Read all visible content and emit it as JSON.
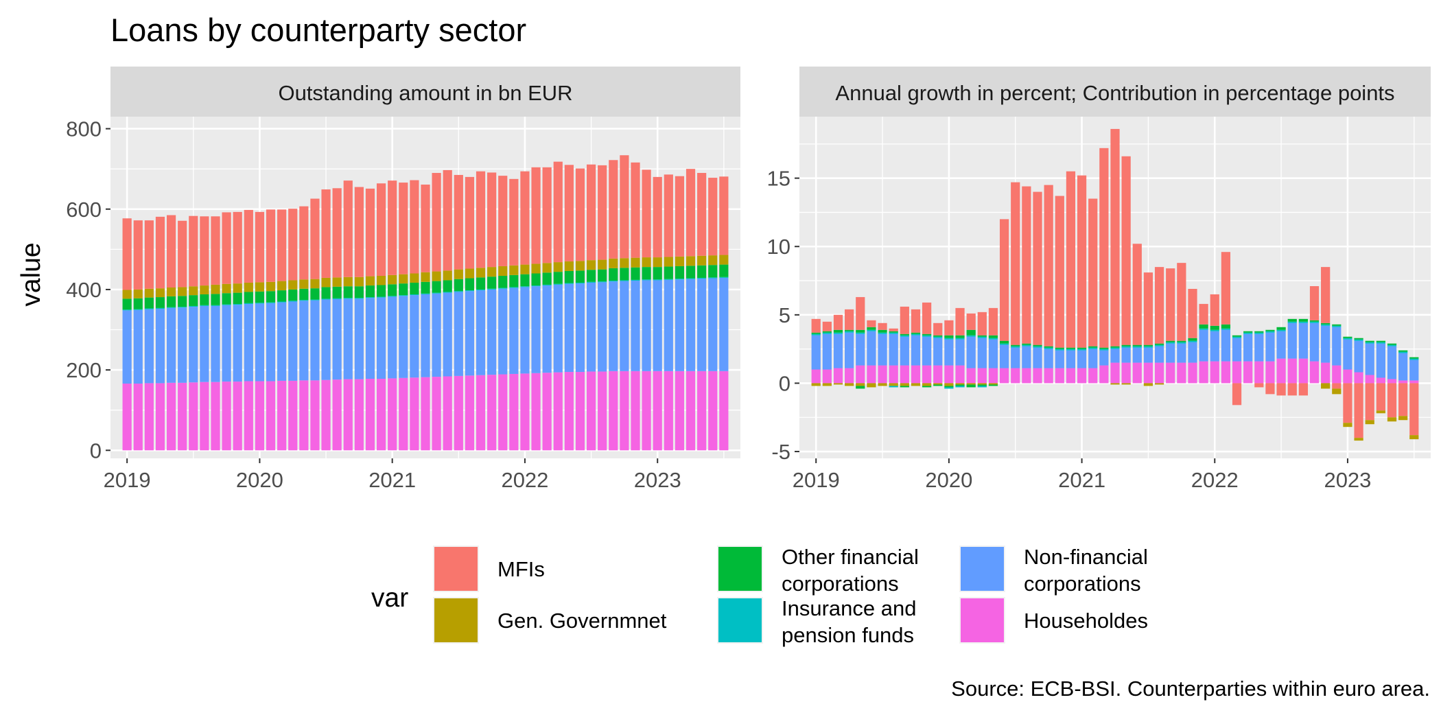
{
  "chart_data": {
    "type": "bar",
    "stacked": true,
    "title": "Loans by counterparty sector",
    "ylabel": "value",
    "caption": "Source: ECB-BSI. Counterparties within euro area.",
    "legend": {
      "title": "var",
      "position": "bottom"
    },
    "series": [
      {
        "name": "MFIs",
        "color": "#F8766D"
      },
      {
        "name": "Gen. Governmnet",
        "color": "#B79F00"
      },
      {
        "name": "Other financial corporations",
        "label_lines": [
          "Other financial",
          "corporations"
        ],
        "color": "#00BA38"
      },
      {
        "name": "Insurance and pension funds",
        "label_lines": [
          "Insurance and",
          "pension funds"
        ],
        "color": "#00BFC4"
      },
      {
        "name": "Non-financial corporations",
        "label_lines": [
          "Non-financial",
          "corporations"
        ],
        "color": "#619CFF"
      },
      {
        "name": "Householdes",
        "color": "#F564E3"
      }
    ],
    "x_start": "2019-01",
    "x_ticks": [
      "2019",
      "2020",
      "2021",
      "2022",
      "2023"
    ],
    "grid": true,
    "panels": [
      {
        "strip": "Outstanding amount in bn EUR",
        "ylim": [
          -20,
          830
        ],
        "y_ticks": [
          0,
          200,
          400,
          600,
          800
        ],
        "values": {
          "Householdes": [
            166,
            166,
            167,
            167,
            168,
            168,
            169,
            170,
            170,
            171,
            171,
            172,
            172,
            172,
            173,
            173,
            174,
            174,
            175,
            176,
            177,
            177,
            178,
            178,
            179,
            180,
            181,
            182,
            183,
            184,
            185,
            186,
            187,
            188,
            189,
            190,
            191,
            192,
            193,
            194,
            195,
            195,
            196,
            196,
            197,
            197,
            197,
            197,
            197,
            197,
            197,
            197,
            197,
            197,
            197
          ],
          "Non-financial corporations": [
            182,
            183,
            184,
            185,
            186,
            187,
            188,
            189,
            189,
            190,
            191,
            192,
            193,
            194,
            195,
            197,
            198,
            199,
            200,
            200,
            200,
            200,
            201,
            202,
            203,
            204,
            205,
            206,
            207,
            208,
            209,
            210,
            211,
            212,
            213,
            214,
            215,
            216,
            217,
            218,
            219,
            220,
            221,
            222,
            223,
            224,
            225,
            226,
            226,
            227,
            228,
            229,
            230,
            231,
            232
          ],
          "Insurance and pension funds": [
            2,
            2,
            2,
            2,
            2,
            2,
            2,
            2,
            2,
            2,
            2,
            2,
            2,
            2,
            2,
            2,
            2,
            2,
            2,
            2,
            2,
            2,
            2,
            2,
            2,
            2,
            2,
            2,
            2,
            2,
            2,
            2,
            2,
            2,
            2,
            2,
            2,
            2,
            2,
            2,
            2,
            2,
            2,
            2,
            2,
            2,
            2,
            2,
            2,
            2,
            2,
            2,
            2,
            2,
            2
          ],
          "Other financial corporations": [
            27,
            27,
            27,
            27,
            27,
            27,
            27,
            27,
            28,
            28,
            28,
            28,
            28,
            28,
            28,
            28,
            28,
            28,
            29,
            29,
            29,
            29,
            29,
            29,
            29,
            29,
            29,
            29,
            29,
            29,
            30,
            30,
            30,
            30,
            30,
            30,
            30,
            30,
            30,
            30,
            30,
            30,
            30,
            30,
            31,
            31,
            31,
            31,
            31,
            31,
            31,
            31,
            31,
            31,
            31
          ],
          "Gen. Governmnet": [
            22,
            22,
            22,
            22,
            22,
            22,
            22,
            22,
            23,
            23,
            23,
            23,
            23,
            23,
            23,
            23,
            23,
            23,
            23,
            23,
            23,
            23,
            23,
            23,
            23,
            23,
            23,
            24,
            24,
            24,
            24,
            24,
            24,
            24,
            24,
            24,
            24,
            24,
            24,
            24,
            24,
            24,
            24,
            24,
            24,
            24,
            24,
            24,
            24,
            24,
            24,
            24,
            24,
            24,
            24
          ],
          "MFIs": [
            178,
            172,
            170,
            178,
            180,
            165,
            175,
            172,
            170,
            178,
            178,
            181,
            175,
            180,
            178,
            178,
            182,
            200,
            220,
            222,
            240,
            224,
            218,
            230,
            235,
            228,
            232,
            218,
            245,
            250,
            235,
            228,
            240,
            235,
            225,
            215,
            232,
            240,
            238,
            250,
            240,
            230,
            238,
            235,
            245,
            256,
            237,
            218,
            200,
            205,
            200,
            217,
            206,
            193,
            195
          ]
        }
      },
      {
        "strip": "Annual growth in percent; Contribution in percentage points",
        "ylim": [
          -5.5,
          19.5
        ],
        "y_ticks": [
          -5,
          0,
          5,
          10,
          15
        ],
        "values": {
          "Householdes": [
            1.0,
            1.0,
            1.1,
            1.1,
            1.3,
            1.3,
            1.3,
            1.3,
            1.3,
            1.3,
            1.3,
            1.3,
            1.3,
            1.3,
            1.1,
            1.1,
            1.1,
            1.1,
            1.1,
            1.1,
            1.1,
            1.1,
            1.1,
            1.1,
            1.1,
            1.1,
            1.3,
            1.5,
            1.5,
            1.5,
            1.5,
            1.5,
            1.5,
            1.5,
            1.5,
            1.6,
            1.6,
            1.6,
            1.6,
            1.6,
            1.6,
            1.6,
            1.8,
            1.8,
            1.8,
            1.6,
            1.5,
            1.3,
            1.0,
            0.8,
            0.6,
            0.4,
            0.3,
            0.2,
            0.2
          ],
          "Non-financial corporations": [
            2.5,
            2.6,
            2.5,
            2.6,
            2.3,
            2.5,
            2.3,
            2.3,
            2.1,
            2.2,
            2.1,
            2.0,
            1.9,
            1.9,
            2.3,
            2.2,
            2.1,
            1.7,
            1.5,
            1.6,
            1.5,
            1.4,
            1.3,
            1.3,
            1.3,
            1.4,
            1.1,
            1.0,
            1.1,
            1.1,
            1.1,
            1.2,
            1.4,
            1.4,
            1.5,
            2.3,
            2.2,
            2.3,
            1.7,
            2.0,
            2.0,
            2.1,
            2.0,
            2.6,
            2.6,
            2.8,
            2.7,
            2.8,
            2.2,
            2.3,
            2.3,
            2.5,
            2.4,
            2.0,
            1.5
          ],
          "Insurance and pension funds": [
            0.1,
            0.1,
            0.1,
            0.1,
            0.1,
            0.1,
            0.1,
            0.1,
            0.1,
            0.1,
            0.1,
            0.1,
            0.1,
            0.1,
            0.1,
            0.1,
            0.1,
            0.1,
            0.1,
            0.1,
            0.1,
            0.1,
            0.1,
            0.1,
            0.1,
            0.1,
            0.1,
            0.1,
            0.1,
            0.1,
            0.1,
            0.1,
            0.1,
            0.1,
            0.1,
            0.1,
            0.1,
            0.1,
            0.1,
            0.1,
            0.1,
            0.1,
            0.1,
            0.1,
            0.1,
            0.1,
            0.1,
            0.1,
            0.1,
            0.1,
            0.1,
            0.1,
            0.1,
            0.1,
            0.1
          ],
          "Other financial corporations": [
            0.1,
            0.1,
            0.2,
            0.1,
            0.2,
            0.2,
            0.2,
            0.1,
            0.1,
            0.1,
            0.1,
            0.1,
            0.2,
            0.2,
            0.4,
            0.1,
            0.2,
            0.2,
            0.1,
            0.1,
            0.1,
            0.1,
            0.1,
            0.1,
            0.1,
            0.1,
            0.1,
            0.1,
            0.1,
            0.1,
            0.1,
            0.1,
            0.1,
            0.1,
            0.2,
            0.3,
            0.3,
            0.3,
            0.1,
            0.1,
            0.1,
            0.1,
            0.2,
            0.2,
            0.2,
            0.1,
            0.1,
            0.1,
            0.1,
            0.1,
            0.1,
            0.1,
            0.1,
            0.1,
            0.1
          ],
          "Gen. Governmnet": [
            0,
            0,
            0,
            0,
            0,
            0,
            0,
            0,
            0,
            0,
            0,
            0,
            0,
            0,
            0,
            0,
            0,
            0,
            0,
            0,
            0,
            0,
            0,
            0,
            0,
            0,
            0,
            0,
            0,
            0,
            0,
            0,
            0,
            0,
            0,
            0,
            0,
            0,
            0,
            0,
            0,
            0,
            0,
            0,
            0,
            0,
            0,
            0,
            0,
            0,
            0,
            0,
            0,
            0,
            0
          ],
          "MFIs": [
            1.0,
            0.7,
            1.1,
            1.5,
            2.4,
            0.5,
            0.5,
            0.2,
            2.0,
            1.7,
            2.3,
            0.9,
            1.1,
            2.0,
            1.2,
            1.7,
            2.0,
            8.9,
            11.9,
            11.5,
            11.2,
            11.8,
            11.1,
            12.9,
            12.6,
            10.8,
            14.6,
            15.9,
            13.8,
            7.4,
            5.3,
            5.6,
            5.3,
            5.7,
            3.6,
            1.5,
            2.3,
            5.3,
            -1.6,
            0,
            -0.3,
            -0.8,
            -0.9,
            -0.9,
            -0.9,
            2.5,
            4.1,
            -0.4,
            -2.9,
            -4.0,
            -2.7,
            -2.0,
            -2.5,
            -2.4,
            -3.8
          ],
          "neg_Gen. Governmnet": [
            -0.2,
            -0.2,
            -0.1,
            -0.2,
            -0.2,
            -0.3,
            -0.2,
            -0.2,
            -0.2,
            -0.2,
            -0.2,
            -0.1,
            -0.2,
            -0.1,
            -0.1,
            -0.1,
            -0.1,
            0,
            0,
            0,
            0,
            0,
            0,
            0,
            0,
            0,
            0,
            -0.1,
            -0.1,
            0,
            -0.2,
            -0.1,
            0,
            0,
            0,
            0,
            0,
            0,
            0,
            0,
            0,
            0,
            0,
            0,
            0,
            0,
            -0.4,
            -0.4,
            -0.3,
            -0.2,
            -0.3,
            -0.2,
            -0.3,
            -0.3,
            -0.3
          ],
          "neg_Other financial corporations": [
            0,
            0,
            0,
            0,
            -0.2,
            0,
            0,
            0,
            -0.1,
            0,
            -0.1,
            -0.1,
            -0.1,
            -0.1,
            -0.2,
            -0.1,
            -0.1,
            0,
            0,
            0,
            0,
            0,
            0,
            0,
            0,
            0,
            0,
            0,
            0,
            0,
            0,
            0,
            0,
            0,
            0,
            0,
            0,
            0,
            0,
            0,
            0,
            0,
            0,
            0,
            0,
            0,
            0,
            0,
            0,
            0,
            0,
            0,
            0,
            0,
            0
          ],
          "neg_Insurance and pension funds": [
            0,
            0,
            0,
            0,
            0,
            0,
            0,
            -0.1,
            0,
            0,
            0,
            0,
            -0.1,
            -0.1,
            0,
            -0.1,
            0,
            0,
            0,
            0,
            0,
            0,
            0,
            0,
            0,
            0,
            0,
            0,
            0,
            0,
            0,
            0,
            0,
            0,
            0,
            0,
            0,
            0,
            0,
            0,
            0,
            0,
            0,
            0,
            0,
            0,
            0,
            0,
            0,
            0,
            0,
            0,
            0,
            0,
            0
          ]
        }
      }
    ]
  }
}
